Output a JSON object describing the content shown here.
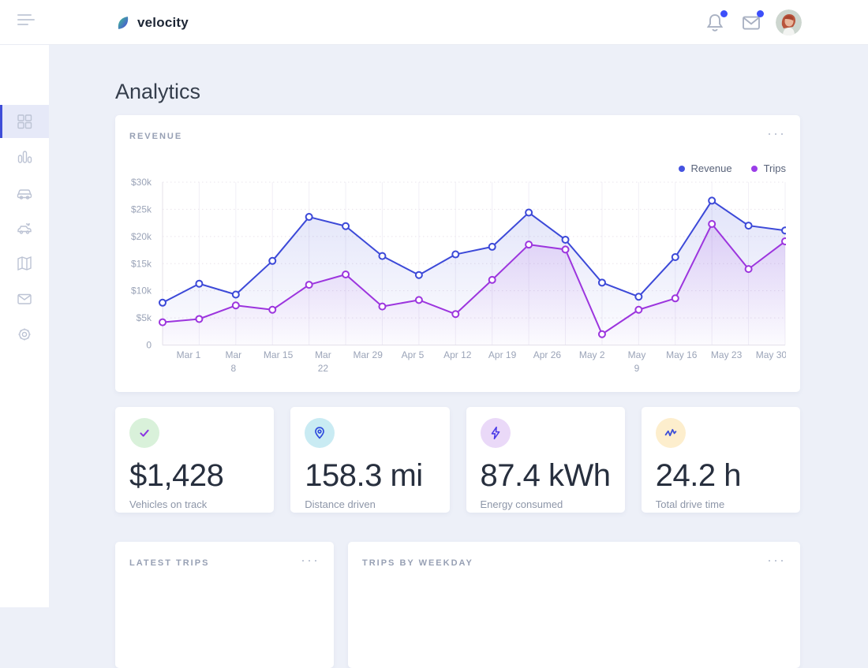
{
  "topbar": {
    "brand": "velocity",
    "icons": [
      "menu-icon",
      "leaf-logo-icon",
      "bell-icon",
      "mail-icon",
      "avatar"
    ],
    "notification_dot_color": "#3d4ffa"
  },
  "sidebar": {
    "items": [
      {
        "icon": "dashboard-grid-icon",
        "active": true
      },
      {
        "icon": "bar-chart-icon",
        "active": false
      },
      {
        "icon": "car-icon",
        "active": false
      },
      {
        "icon": "car-share-icon",
        "active": false
      },
      {
        "icon": "map-icon",
        "active": false
      },
      {
        "icon": "mail-icon",
        "active": false
      },
      {
        "icon": "settings-gear-icon",
        "active": false
      }
    ],
    "active_indicator_color": "#3f4ed8",
    "active_bg_color": "#e6e9f8"
  },
  "page": {
    "title": "Analytics"
  },
  "revenue_card": {
    "title": "REVENUE",
    "menu": "···",
    "legend": [
      {
        "label": "Revenue",
        "color": "#4553e0"
      },
      {
        "label": "Trips",
        "color": "#9a3de8"
      }
    ]
  },
  "chart_data": {
    "type": "line",
    "title": "REVENUE",
    "x_tick_labels": [
      "Mar 1",
      "Mar\n8",
      "Mar 15",
      "Mar\n22",
      "Mar 29",
      "Apr 5",
      "Apr 12",
      "Apr 19",
      "Apr 26",
      "May 2",
      "May\n9",
      "May 16",
      "May 23",
      "May 30"
    ],
    "y_tick_labels": [
      "$30k",
      "$25k",
      "$20k",
      "$15k",
      "$10k",
      "$5k",
      "0"
    ],
    "ylim": [
      0,
      30000
    ],
    "grid": true,
    "legend_position": "top-right",
    "series": [
      {
        "name": "Revenue",
        "color": "#3c49d8",
        "values": [
          7800,
          11300,
          9300,
          15500,
          23600,
          21900,
          16400,
          12900,
          16700,
          18100,
          24400,
          19400,
          11500,
          8900,
          16200,
          26600,
          22000,
          21100
        ]
      },
      {
        "name": "Trips",
        "color": "#9c35de",
        "values": [
          4200,
          4800,
          7300,
          6500,
          11100,
          13000,
          7100,
          8300,
          5700,
          12000,
          18500,
          17600,
          2000,
          6500,
          8600,
          22300,
          14000,
          19100
        ]
      }
    ]
  },
  "stats": [
    {
      "value": "$1,428",
      "label": "Vehicles on track",
      "icon": "check-icon",
      "icon_color": "#8b35e2",
      "bg": "#d9f1da"
    },
    {
      "value": "158.3 mi",
      "label": "Distance driven",
      "icon": "location-pin-icon",
      "icon_color": "#2d49dd",
      "bg": "#c9ebf3"
    },
    {
      "value": "87.4 kWh",
      "label": "Energy consumed",
      "icon": "lightning-icon",
      "icon_color": "#4b3be6",
      "bg": "#ead9f8"
    },
    {
      "value": "24.2 h",
      "label": "Total drive time",
      "icon": "activity-icon",
      "icon_color": "#3e50d8",
      "bg": "#fdeecd"
    }
  ],
  "bottom_cards": [
    {
      "title": "LATEST TRIPS",
      "menu": "···"
    },
    {
      "title": "TRIPS BY WEEKDAY",
      "menu": "···"
    }
  ]
}
